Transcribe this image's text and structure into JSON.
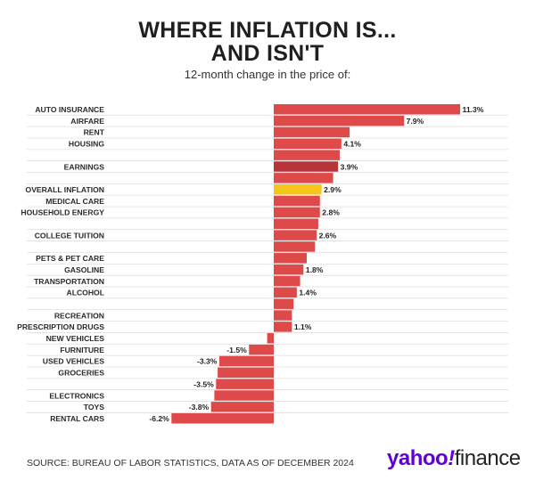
{
  "header": {
    "title_line1": "WHERE INFLATION IS...",
    "title_line2": "AND ISN'T",
    "subtitle": "12-month change in the price of:"
  },
  "footer": {
    "source": "SOURCE: BUREAU OF LABOR STATISTICS, DATA AS OF DECEMBER 2024"
  },
  "brand": {
    "part1": "yahoo",
    "slash": "!",
    "part2": "finance"
  },
  "colors": {
    "bar": "#de4a4a",
    "earnings": "#b73538",
    "overall": "#f5c518"
  },
  "chart_data": {
    "type": "bar",
    "orientation": "horizontal",
    "title": "WHERE INFLATION IS... AND ISN'T",
    "subtitle": "12-month change in the price of:",
    "xlim": [
      -7,
      12
    ],
    "grid": false,
    "rows": [
      {
        "label": "AUTO INSURANCE",
        "value": 11.3,
        "data_label": "11.3%"
      },
      {
        "label": "AIRFARE",
        "value": 7.9,
        "data_label": "7.9%"
      },
      {
        "label": "RENT",
        "value": 4.6,
        "data_label": ""
      },
      {
        "label": "HOUSING",
        "value": 4.1,
        "data_label": "4.1%"
      },
      {
        "label": "",
        "value": 4.0,
        "data_label": ""
      },
      {
        "label": "EARNINGS",
        "value": 3.9,
        "data_label": "3.9%",
        "highlight": "earnings"
      },
      {
        "label": "",
        "value": 3.6,
        "data_label": ""
      },
      {
        "label": "OVERALL INFLATION",
        "value": 2.9,
        "data_label": "2.9%",
        "highlight": "overall"
      },
      {
        "label": "MEDICAL CARE",
        "value": 2.8,
        "data_label": ""
      },
      {
        "label": "HOUSEHOLD ENERGY",
        "value": 2.8,
        "data_label": "2.8%"
      },
      {
        "label": "",
        "value": 2.7,
        "data_label": ""
      },
      {
        "label": "COLLEGE TUITION",
        "value": 2.6,
        "data_label": "2.6%"
      },
      {
        "label": "",
        "value": 2.5,
        "data_label": ""
      },
      {
        "label": "PETS & PET CARE",
        "value": 2.0,
        "data_label": ""
      },
      {
        "label": "GASOLINE",
        "value": 1.8,
        "data_label": "1.8%"
      },
      {
        "label": "TRANSPORTATION",
        "value": 1.6,
        "data_label": ""
      },
      {
        "label": "ALCOHOL",
        "value": 1.4,
        "data_label": "1.4%"
      },
      {
        "label": "",
        "value": 1.2,
        "data_label": ""
      },
      {
        "label": "RECREATION",
        "value": 1.1,
        "data_label": ""
      },
      {
        "label": "PRESCRIPTION DRUGS",
        "value": 1.1,
        "data_label": "1.1%"
      },
      {
        "label": "NEW VEHICLES",
        "value": -0.4,
        "data_label": ""
      },
      {
        "label": "FURNITURE",
        "value": -1.5,
        "data_label": "-1.5%"
      },
      {
        "label": "USED VEHICLES",
        "value": -3.3,
        "data_label": "-3.3%"
      },
      {
        "label": "GROCERIES",
        "value": -3.4,
        "data_label": ""
      },
      {
        "label": "",
        "value": -3.5,
        "data_label": "-3.5%"
      },
      {
        "label": "ELECTRONICS",
        "value": -3.6,
        "data_label": ""
      },
      {
        "label": "TOYS",
        "value": -3.8,
        "data_label": "-3.8%"
      },
      {
        "label": "RENTAL CARS",
        "value": -6.2,
        "data_label": "-6.2%"
      }
    ]
  }
}
